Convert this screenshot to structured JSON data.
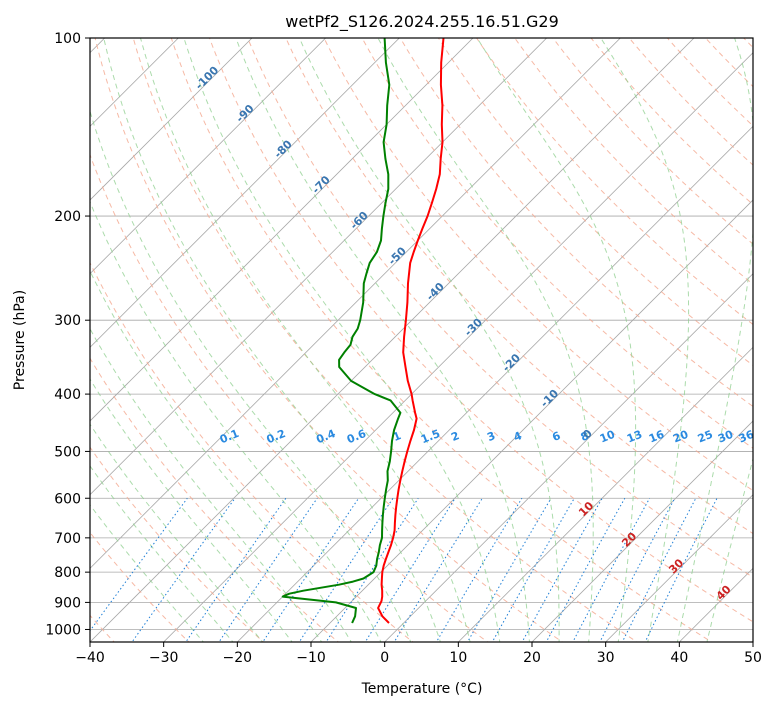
{
  "chart_data": {
    "type": "line",
    "title": "wetPf2_S126.2024.255.16.51.G29",
    "xlabel": "Temperature (°C)",
    "ylabel": "Pressure (hPa)",
    "xlim": [
      -40,
      50
    ],
    "ylim": [
      1050,
      100
    ],
    "y_scale": "log",
    "x_ticks": [
      -40,
      -30,
      -20,
      -10,
      0,
      10,
      20,
      30,
      40,
      50
    ],
    "y_ticks": [
      100,
      200,
      300,
      400,
      500,
      600,
      700,
      800,
      900,
      1000
    ],
    "grid": true,
    "skew_degrees": 45,
    "series": [
      {
        "color": "#ff0000",
        "pressure": [
          975,
          950,
          920,
          895,
          880,
          860,
          840,
          820,
          800,
          780,
          760,
          740,
          720,
          700,
          680,
          660,
          640,
          620,
          600,
          580,
          560,
          540,
          520,
          500,
          480,
          460,
          440,
          430,
          410,
          400,
          380,
          360,
          340,
          320,
          300,
          280,
          260,
          240,
          230,
          220,
          210,
          200,
          190,
          180,
          170,
          160,
          150,
          140,
          130,
          120,
          110,
          100
        ],
        "temperature": [
          -2.0,
          -3.8,
          -5.5,
          -6.0,
          -6.5,
          -7.3,
          -8.2,
          -9.0,
          -9.8,
          -10.5,
          -11.1,
          -11.7,
          -12.3,
          -13.0,
          -13.8,
          -14.8,
          -15.8,
          -16.8,
          -17.8,
          -18.8,
          -19.8,
          -20.8,
          -21.8,
          -22.8,
          -23.8,
          -24.8,
          -26.0,
          -27.0,
          -29.0,
          -30.0,
          -32.3,
          -34.5,
          -36.8,
          -38.8,
          -40.8,
          -43.0,
          -45.5,
          -48.0,
          -49.0,
          -50.0,
          -51.0,
          -52.0,
          -53.2,
          -54.5,
          -56.0,
          -58.0,
          -60.0,
          -62.5,
          -65.0,
          -68.0,
          -71.0,
          -74.0
        ]
      },
      {
        "color": "#008000",
        "pressure": [
          975,
          950,
          920,
          900,
          890,
          880,
          870,
          860,
          850,
          840,
          830,
          820,
          800,
          780,
          760,
          740,
          720,
          700,
          680,
          660,
          640,
          620,
          600,
          580,
          560,
          540,
          520,
          500,
          480,
          460,
          440,
          430,
          410,
          400,
          380,
          360,
          350,
          340,
          330,
          320,
          310,
          300,
          280,
          260,
          250,
          240,
          230,
          220,
          210,
          200,
          190,
          180,
          170,
          160,
          150,
          140,
          130,
          120,
          110,
          100
        ],
        "temperature": [
          -7.0,
          -7.5,
          -8.5,
          -12.0,
          -16.0,
          -20.0,
          -19.5,
          -18.0,
          -16.0,
          -14.0,
          -12.5,
          -11.5,
          -11.0,
          -11.5,
          -12.3,
          -13.0,
          -13.8,
          -14.5,
          -15.5,
          -16.5,
          -17.5,
          -18.5,
          -19.5,
          -20.5,
          -21.5,
          -22.8,
          -23.8,
          -25.0,
          -26.3,
          -27.5,
          -28.5,
          -29.0,
          -32.0,
          -35.0,
          -40.0,
          -43.5,
          -44.5,
          -44.8,
          -45.0,
          -45.8,
          -46.2,
          -47.0,
          -49.0,
          -51.5,
          -52.5,
          -53.5,
          -54.0,
          -55.0,
          -56.5,
          -58.0,
          -59.5,
          -61.0,
          -63.0,
          -65.5,
          -68.0,
          -70.0,
          -72.5,
          -75.0,
          -78.5,
          -82.0
        ]
      }
    ],
    "mixing_ratio_labels": [
      "0.1",
      "0.2",
      "0.4",
      "0.6",
      "1",
      "1.5",
      "2",
      "3",
      "4",
      "6",
      "8",
      "10",
      "13",
      "16",
      "20",
      "25",
      "30",
      "36"
    ],
    "dry_adiabat_labels": [
      "-100",
      "-90",
      "-80",
      "-70",
      "-60",
      "-50",
      "-40",
      "-30",
      "-20",
      "-10",
      "0"
    ],
    "moist_adiabat_labels": [
      "10",
      "20",
      "30",
      "40"
    ]
  }
}
